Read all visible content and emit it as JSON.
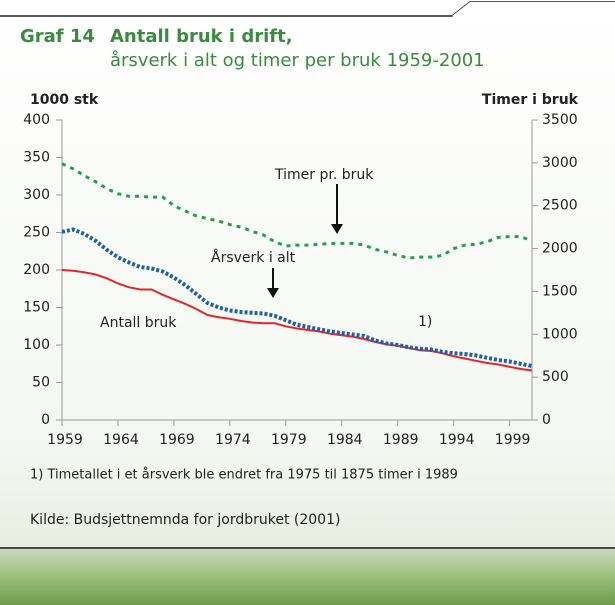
{
  "chart_data": {
    "type": "line",
    "figure_label": "Graf 14",
    "title": "Antall bruk i drift,",
    "subtitle": "årsverk i alt og timer per bruk 1959-2001",
    "ylabel": "1000 stk",
    "y2label": "Timer i bruk",
    "x": [
      1959,
      1960,
      1961,
      1962,
      1963,
      1964,
      1965,
      1966,
      1967,
      1968,
      1969,
      1970,
      1971,
      1972,
      1973,
      1974,
      1975,
      1976,
      1977,
      1978,
      1979,
      1980,
      1981,
      1982,
      1983,
      1984,
      1985,
      1986,
      1987,
      1988,
      1989,
      1990,
      1991,
      1992,
      1993,
      1994,
      1995,
      1996,
      1997,
      1998,
      1999,
      2000,
      2001
    ],
    "xlim": [
      1959,
      2001
    ],
    "xticks": [
      1959,
      1964,
      1969,
      1974,
      1979,
      1984,
      1989,
      1994,
      1999
    ],
    "ylim": [
      0,
      400
    ],
    "yticks": [
      0,
      50,
      100,
      150,
      200,
      250,
      300,
      350,
      400
    ],
    "y2lim": [
      0,
      3500
    ],
    "y2ticks": [
      0,
      500,
      1000,
      1500,
      2000,
      2500,
      3000,
      3500
    ],
    "grid": false,
    "series": [
      {
        "name": "Antall bruk",
        "color": "#e3262b",
        "style": "solid",
        "values": [
          200,
          199,
          197,
          194,
          189,
          182,
          177,
          174,
          174,
          167,
          161,
          155,
          148,
          140,
          137,
          135,
          132,
          130,
          129,
          129,
          125,
          122,
          120,
          118,
          115,
          113,
          111,
          108,
          104,
          101,
          99,
          96,
          93,
          92,
          89,
          85,
          82,
          79,
          76,
          74,
          71,
          68,
          66
        ]
      },
      {
        "name": "Årsverk i alt",
        "color": "#1f5fa8",
        "style": "dotted",
        "values": [
          251,
          254,
          248,
          239,
          227,
          217,
          210,
          204,
          202,
          198,
          190,
          180,
          168,
          156,
          150,
          146,
          144,
          143,
          142,
          139,
          133,
          127,
          124,
          121,
          118,
          116,
          114,
          112,
          106,
          102,
          100,
          97,
          95,
          94,
          91,
          89,
          88,
          86,
          83,
          80,
          78,
          75,
          72
        ]
      },
      {
        "name": "Timer pr. bruk",
        "color": "#23a04a",
        "style": "dashed",
        "axis": "y2",
        "values": [
          2990,
          2930,
          2850,
          2780,
          2700,
          2640,
          2610,
          2610,
          2600,
          2600,
          2500,
          2440,
          2380,
          2350,
          2320,
          2280,
          2250,
          2200,
          2160,
          2080,
          2030,
          2040,
          2040,
          2050,
          2060,
          2060,
          2060,
          2040,
          1990,
          1960,
          1920,
          1890,
          1900,
          1900,
          1920,
          2000,
          2040,
          2050,
          2080,
          2130,
          2140,
          2140,
          2090
        ]
      }
    ],
    "annotations": [
      "1)"
    ],
    "footnote": "1) Timetallet i et årsverk ble endret fra 1975 til 1875 timer i 1989",
    "source": "Kilde: Budsjettnemnda for jordbruket (2001)"
  }
}
